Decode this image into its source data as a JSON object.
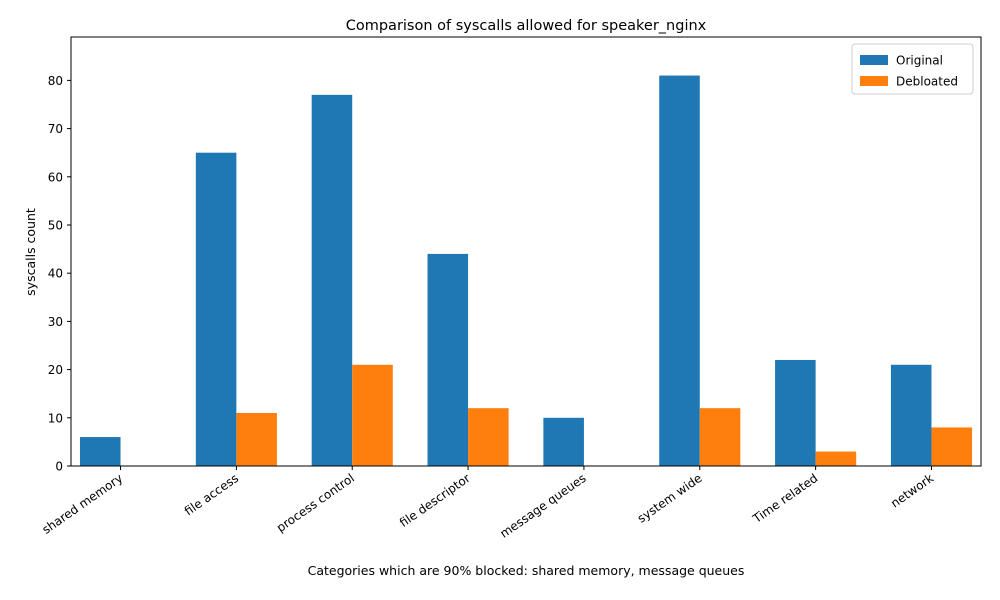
{
  "chart_data": {
    "type": "bar",
    "title": "Comparison of syscalls allowed for speaker_nginx",
    "xlabel": "Categories which are 90% blocked: shared memory, message queues",
    "ylabel": "syscalls count",
    "categories": [
      "shared memory",
      "file access",
      "process control",
      "file descriptor",
      "message queues",
      "system wide",
      "Time related",
      "network"
    ],
    "series": [
      {
        "name": "Original",
        "values": [
          6,
          65,
          77,
          44,
          10,
          81,
          22,
          21
        ],
        "color": "#1f77b4"
      },
      {
        "name": "Debloated",
        "values": [
          0,
          11,
          21,
          12,
          0,
          12,
          3,
          8
        ],
        "color": "#ff7f0e"
      }
    ],
    "yticks": [
      0,
      10,
      20,
      30,
      40,
      50,
      60,
      70,
      80
    ],
    "ylim": [
      0,
      89
    ],
    "grid": false,
    "legend_position": "top-right"
  }
}
